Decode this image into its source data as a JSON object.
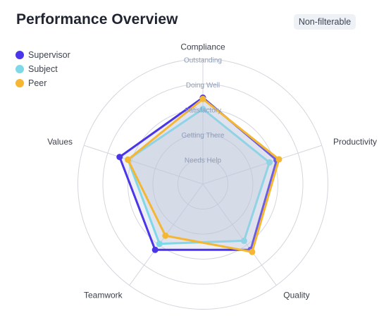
{
  "header": {
    "title": "Performance Overview",
    "badge": "Non-filterable"
  },
  "chart_data": {
    "type": "radar",
    "axes": [
      "Compliance",
      "Productivity",
      "Quality",
      "Teamwork",
      "Values"
    ],
    "levels": [
      "Needs Help",
      "Getting There",
      "Satisfactory",
      "Doing Well",
      "Outstanding"
    ],
    "range": [
      0,
      5
    ],
    "series": [
      {
        "name": "Supervisor",
        "color": "#4a35e8",
        "values": [
          3.45,
          3.1,
          3.25,
          3.25,
          3.5
        ]
      },
      {
        "name": "Subject",
        "color": "#7dd8e8",
        "values": [
          3.0,
          2.8,
          2.8,
          2.95,
          3.15
        ]
      },
      {
        "name": "Peer",
        "color": "#f5b731",
        "values": [
          3.4,
          3.2,
          3.35,
          2.55,
          3.15
        ]
      }
    ],
    "legend_position": "top-left"
  }
}
